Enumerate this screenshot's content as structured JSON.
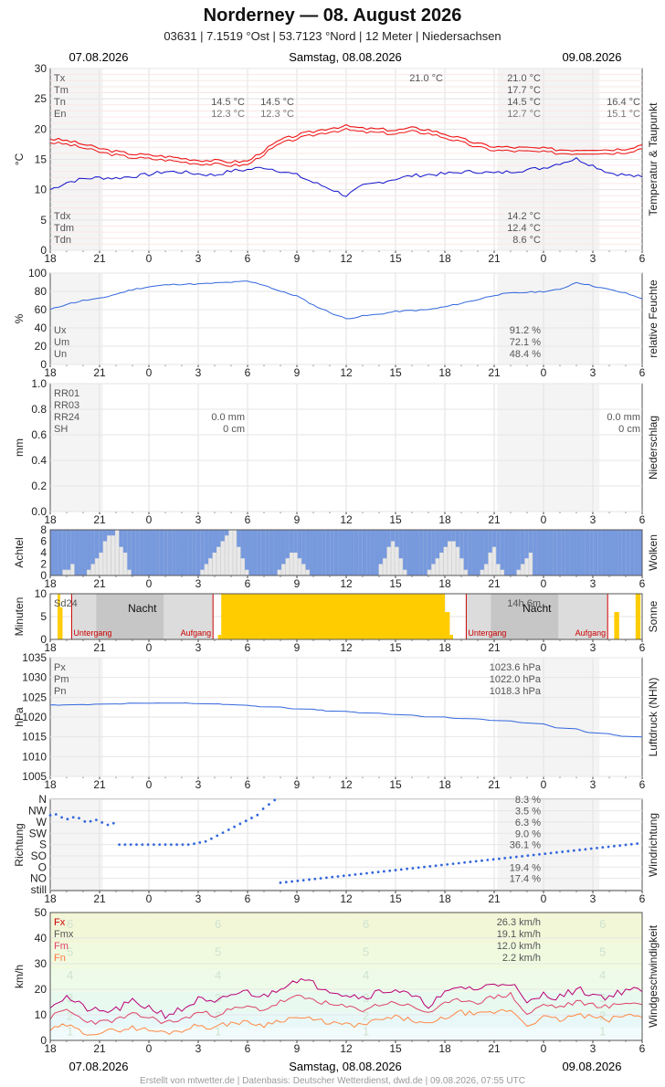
{
  "header": {
    "title": "Norderney  —  08. August 2026",
    "subtitle": "03631  |  7.1519 °Ost  |  53.7123 °Nord  |  12 Meter  |  Niedersachsen",
    "date_prev": "07.08.2026",
    "date_main": "Samstag, 08.08.2026",
    "date_next": "09.08.2026"
  },
  "footer": "Erstellt von mtwetter.de | Datenbasis: Deutscher Wetterdienst, dwd.de | 09.08.2026, 07:55 UTC",
  "x_tick_labels": [
    "18",
    "21",
    "0",
    "3",
    "6",
    "9",
    "12",
    "15",
    "18",
    "21",
    "0",
    "3",
    "6"
  ],
  "colors": {
    "temp": "#ee1111",
    "dew": "#1111cc",
    "humidity": "#3366dd",
    "pressure": "#3366dd",
    "clouds": "#7799dd",
    "sun": "#ffcc00",
    "night_marker": "#cc0000",
    "wind_fx": "#bb0077",
    "wind_fm": "#dd4466",
    "wind_fn": "#ff8844"
  },
  "chart_data": [
    {
      "type": "line",
      "panel": "Temperatur & Taupunkt",
      "ylabel": "°C",
      "ylim": [
        0,
        30
      ],
      "yticks": [
        0,
        5,
        10,
        15,
        20,
        25,
        30
      ],
      "x_hours": [
        0,
        3,
        6,
        9,
        12,
        15,
        18,
        21,
        24,
        27,
        30,
        33,
        36
      ],
      "series": [
        {
          "name": "Temperatur",
          "x": [
            0,
            1,
            2,
            3,
            4,
            5,
            6,
            7,
            8,
            9,
            10,
            11,
            12,
            13,
            14,
            15,
            16,
            17,
            18,
            19,
            20,
            21,
            22,
            23,
            24,
            25,
            26,
            27,
            28,
            29,
            30,
            31,
            32,
            33,
            34,
            35,
            36
          ],
          "values": [
            18.4,
            18.1,
            17.5,
            16.8,
            16.3,
            15.9,
            15.7,
            15.5,
            15.2,
            14.9,
            14.8,
            14.6,
            14.7,
            16.5,
            18.2,
            19.0,
            19.6,
            20.2,
            20.5,
            20.1,
            20.0,
            19.8,
            20.2,
            19.9,
            19.2,
            18.4,
            17.6,
            17.1,
            17.0,
            16.9,
            16.8,
            16.6,
            16.6,
            16.7,
            16.6,
            16.8,
            17.4
          ]
        },
        {
          "name": "Taupunkt",
          "x": [
            0,
            1,
            2,
            3,
            4,
            5,
            6,
            7,
            8,
            9,
            10,
            11,
            12,
            13,
            14,
            15,
            16,
            17,
            18,
            19,
            20,
            21,
            22,
            23,
            24,
            25,
            26,
            27,
            28,
            29,
            30,
            31,
            32,
            33,
            34,
            35,
            36
          ],
          "values": [
            10.0,
            11.2,
            11.8,
            12.0,
            11.9,
            12.2,
            12.5,
            13.0,
            12.9,
            12.6,
            12.4,
            13.1,
            13.3,
            13.7,
            13.1,
            12.4,
            11.2,
            10.2,
            9.0,
            10.6,
            11.2,
            11.8,
            12.3,
            12.5,
            12.6,
            12.9,
            13.0,
            12.7,
            13.0,
            13.3,
            13.6,
            14.4,
            15.1,
            14.0,
            12.8,
            12.4,
            12.1
          ]
        }
      ],
      "legend": [
        "Tx",
        "Tm",
        "Tn",
        "En"
      ],
      "legend_bottom": [
        "Tdx",
        "Tdm",
        "Tdn"
      ],
      "labels": {
        "day1_tn": "14.5 °C",
        "day1_en": "12.3 °C",
        "day1b_tn": "14.5 °C",
        "day1b_en": "12.3 °C",
        "day2_tx_max": "21.0 °C",
        "day2_tx": "21.0 °C",
        "day2_tm": "17.7 °C",
        "day2_tn": "14.5 °C",
        "day2_en": "12.7 °C",
        "day3_tn": "16.4 °C",
        "day3_en": "15.1 °C",
        "tdx": "14.2 °C",
        "tdm": "12.4 °C",
        "tdn": "8.6 °C"
      },
      "side_label": "Temperatur & Taupunkt"
    },
    {
      "type": "line",
      "panel": "relative Feuchte",
      "ylabel": "%",
      "ylim": [
        0,
        100
      ],
      "yticks": [
        0,
        20,
        40,
        60,
        80,
        100
      ],
      "series": [
        {
          "name": "relative Feuchte",
          "x": [
            0,
            1,
            2,
            3,
            4,
            5,
            6,
            7,
            8,
            9,
            10,
            11,
            12,
            13,
            14,
            15,
            16,
            17,
            18,
            19,
            20,
            21,
            22,
            23,
            24,
            25,
            26,
            27,
            28,
            29,
            30,
            31,
            32,
            33,
            34,
            35,
            36
          ],
          "values": [
            60,
            66,
            70,
            72,
            77,
            82,
            85,
            87,
            88,
            88,
            89,
            90,
            91,
            87,
            80,
            75,
            65,
            57,
            50,
            53,
            55,
            58,
            59,
            60,
            63,
            67,
            71,
            76,
            78,
            79,
            80,
            82,
            90,
            86,
            82,
            78,
            72
          ]
        }
      ],
      "legend": [
        "Ux",
        "Um",
        "Un"
      ],
      "labels": {
        "ux": "91.2 %",
        "um": "72.1 %",
        "un": "48.4 %"
      },
      "side_label": "relative Feuchte"
    },
    {
      "type": "bar",
      "panel": "Niederschlag",
      "ylabel": "mm",
      "ylim": [
        0,
        1.0
      ],
      "yticks": [
        "0.0",
        "0.2",
        "0.4",
        "0.6",
        "0.8",
        "1.0"
      ],
      "legend": [
        "RR01",
        "RR03",
        "RR24",
        "SH"
      ],
      "labels": {
        "d1_rr": "0.0 mm",
        "d1_sh": "0 cm",
        "d2_rr": "0.0 mm",
        "d2_sh": "0 cm"
      },
      "side_label": "Niederschlag"
    },
    {
      "type": "bar",
      "panel": "Wolken",
      "ylabel": "Achtel",
      "ylim": [
        0,
        8
      ],
      "yticks": [
        0,
        2,
        4,
        6,
        8
      ],
      "values": [
        8,
        8,
        8,
        7,
        7,
        6,
        8,
        8,
        8,
        7,
        6,
        5,
        4,
        2,
        1,
        1,
        0,
        3,
        4,
        7,
        8,
        8,
        8,
        8,
        8,
        8,
        8,
        8,
        8,
        8,
        8,
        8,
        8,
        8,
        8,
        8,
        8,
        7,
        6,
        5,
        4,
        3,
        2,
        1,
        0,
        0,
        3,
        5,
        7,
        8,
        8,
        8,
        8,
        8,
        8,
        8,
        7,
        6,
        5,
        4,
        4,
        5,
        6,
        7,
        8,
        8,
        8,
        8,
        8,
        8,
        8,
        8,
        8,
        8,
        8,
        8,
        8,
        8,
        8,
        8,
        8,
        6,
        5,
        3,
        2,
        3,
        5,
        7,
        8,
        8,
        8,
        8,
        8,
        7,
        6,
        5,
        4,
        3,
        2,
        2,
        3,
        5,
        7,
        8,
        8,
        8,
        7,
        6,
        4,
        3,
        6,
        7,
        8,
        8,
        8,
        7,
        6,
        5,
        4,
        8,
        8,
        8,
        8,
        8,
        8,
        8,
        8,
        8,
        8,
        8,
        8,
        8,
        8,
        8,
        8,
        8,
        8,
        8,
        8,
        8,
        8,
        8,
        8,
        8,
        8,
        8
      ],
      "side_label": "Wolken"
    },
    {
      "type": "bar",
      "panel": "Sonne",
      "ylabel": "Minuten",
      "ylim": [
        0,
        10
      ],
      "yticks": [
        0,
        5,
        10
      ],
      "legend": [
        "Sd24"
      ],
      "labels": {
        "sun_total": "14h 6m",
        "night": "Nacht",
        "sunset": "Untergang",
        "sunrise": "Aufgang"
      },
      "side_label": "Sonne"
    },
    {
      "type": "line",
      "panel": "Luftdruck (NHN)",
      "ylabel": "hPa",
      "ylim": [
        1005,
        1035
      ],
      "yticks": [
        1005,
        1010,
        1015,
        1020,
        1025,
        1030,
        1035
      ],
      "series": [
        {
          "name": "Luftdruck",
          "x": [
            0,
            2,
            4,
            6,
            8,
            10,
            12,
            14,
            16,
            18,
            20,
            22,
            24,
            26,
            28,
            30,
            32,
            34,
            36
          ],
          "values": [
            1023.0,
            1023.1,
            1023.3,
            1023.5,
            1023.6,
            1023.4,
            1023.0,
            1022.5,
            1022.0,
            1021.4,
            1021.0,
            1020.5,
            1020.0,
            1019.5,
            1019.0,
            1018.3,
            1017.0,
            1015.7,
            1015.0
          ]
        }
      ],
      "legend": [
        "Px",
        "Pm",
        "Pn"
      ],
      "labels": {
        "px": "1023.6 hPa",
        "pm": "1022.0 hPa",
        "pn": "1018.3 hPa"
      },
      "side_label": "Luftdruck (NHN)"
    },
    {
      "type": "scatter",
      "panel": "Windrichtung",
      "ylabel": "Richtung",
      "categories": [
        "still",
        "NO",
        "O",
        "SO",
        "S",
        "SW",
        "W",
        "NW",
        "N"
      ],
      "legend_values": [
        "8.3 %",
        "3.5 %",
        "6.3 %",
        "9.0 %",
        "36.1 %",
        "",
        "19.4 %",
        "17.4 %"
      ],
      "side_label": "Windrichtung"
    },
    {
      "type": "line",
      "panel": "Windgeschwindigkeit",
      "ylabel": "km/h",
      "ylim": [
        0,
        50
      ],
      "yticks": [
        0,
        10,
        20,
        30,
        40,
        50
      ],
      "series": [
        {
          "name": "Fx",
          "x": [
            0,
            1,
            2,
            3,
            4,
            5,
            6,
            7,
            8,
            9,
            10,
            11,
            12,
            13,
            14,
            15,
            16,
            17,
            18,
            19,
            20,
            21,
            22,
            23,
            24,
            25,
            26,
            27,
            28,
            29,
            30,
            31,
            32,
            33,
            34,
            35,
            36
          ],
          "values": [
            14,
            17,
            13,
            11,
            12,
            15,
            13,
            10,
            12,
            16,
            14,
            18,
            19,
            17,
            21,
            24,
            22,
            20,
            18,
            17,
            19,
            20,
            17,
            14,
            18,
            21,
            20,
            22,
            23,
            14,
            18,
            17,
            20,
            18,
            17,
            20,
            19
          ]
        },
        {
          "name": "Fm",
          "x": [
            0,
            1,
            2,
            3,
            4,
            5,
            6,
            7,
            8,
            9,
            10,
            11,
            12,
            13,
            14,
            15,
            16,
            17,
            18,
            19,
            20,
            21,
            22,
            23,
            24,
            25,
            26,
            27,
            28,
            29,
            30,
            31,
            32,
            33,
            34,
            35,
            36
          ],
          "values": [
            9,
            12,
            8,
            7,
            8,
            10,
            9,
            7,
            8,
            11,
            10,
            12,
            13,
            12,
            15,
            17,
            16,
            14,
            13,
            12,
            14,
            15,
            13,
            11,
            14,
            16,
            15,
            17,
            18,
            10,
            14,
            13,
            15,
            14,
            13,
            15,
            14
          ]
        },
        {
          "name": "Fn",
          "x": [
            0,
            1,
            2,
            3,
            4,
            5,
            6,
            7,
            8,
            9,
            10,
            11,
            12,
            13,
            14,
            15,
            16,
            17,
            18,
            19,
            20,
            21,
            22,
            23,
            24,
            25,
            26,
            27,
            28,
            29,
            30,
            31,
            32,
            33,
            34,
            35,
            36
          ],
          "values": [
            4,
            6,
            3,
            3,
            4,
            5,
            4,
            3,
            4,
            6,
            5,
            7,
            7,
            6,
            8,
            9,
            8,
            7,
            6,
            6,
            8,
            9,
            8,
            6,
            9,
            11,
            10,
            11,
            12,
            6,
            9,
            8,
            10,
            9,
            8,
            10,
            9
          ]
        }
      ],
      "legend": [
        "Fx",
        "Fmx",
        "Fm",
        "Fn"
      ],
      "labels": {
        "fx": "26.3 km/h",
        "fmx": "19.1 km/h",
        "fm": "12.0 km/h",
        "fn": "2.2 km/h"
      },
      "beaufort_marks": [
        "6",
        "5",
        "4",
        "3",
        "2",
        "1"
      ],
      "side_label": "Windgeschwindigkeit"
    }
  ]
}
